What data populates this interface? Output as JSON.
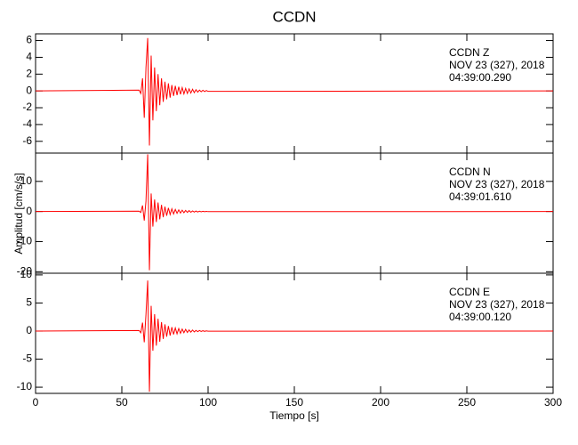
{
  "chart_data": [
    {
      "type": "line",
      "title": "CCDN",
      "annotations": [
        "CCDN   Z",
        "NOV 23 (327), 2018",
        "04:39:00.290"
      ],
      "color": "#ff0000",
      "x": [
        0,
        60,
        61,
        62,
        63,
        64,
        65,
        66,
        67,
        68,
        69,
        70,
        71,
        72,
        73,
        74,
        75,
        76,
        77,
        78,
        79,
        80,
        81,
        82,
        83,
        84,
        85,
        86,
        87,
        88,
        89,
        90,
        91,
        92,
        93,
        94,
        95,
        96,
        97,
        98,
        99,
        100,
        300
      ],
      "values": [
        0,
        0.1,
        -0.3,
        1.5,
        -3.2,
        2.8,
        6.3,
        -6.5,
        4.2,
        -3.5,
        2.8,
        -2.4,
        2.0,
        -1.7,
        1.5,
        -1.3,
        1.1,
        -1.0,
        0.9,
        -0.8,
        0.7,
        -0.6,
        0.6,
        -0.5,
        0.5,
        -0.4,
        0.4,
        -0.35,
        0.3,
        -0.3,
        0.25,
        -0.25,
        0.2,
        -0.2,
        0.15,
        -0.15,
        0.1,
        -0.1,
        0.08,
        -0.08,
        0.05,
        -0.05,
        0
      ],
      "xlim": [
        0,
        300
      ],
      "xticks": [
        0,
        50,
        100,
        150,
        200,
        250,
        300
      ],
      "ylim": [
        -7.4,
        6.8
      ],
      "yticks": [
        -6,
        -4,
        -2,
        0,
        2,
        4,
        6
      ]
    },
    {
      "type": "line",
      "ylabel": "Amplitud [cm/s/s]",
      "annotations": [
        "CCDN   N",
        "NOV 23 (327), 2018",
        "04:39:01.610"
      ],
      "color": "#ff0000",
      "x": [
        0,
        60,
        61,
        62,
        63,
        64,
        65,
        66,
        67,
        68,
        69,
        70,
        71,
        72,
        73,
        74,
        75,
        76,
        77,
        78,
        79,
        80,
        81,
        82,
        83,
        84,
        85,
        86,
        87,
        88,
        89,
        90,
        91,
        92,
        93,
        94,
        95,
        96,
        97,
        98,
        99,
        100,
        300
      ],
      "values": [
        0,
        0.1,
        -0.3,
        2,
        -3,
        3.5,
        19,
        -19.5,
        6,
        -5,
        4,
        -3.5,
        3,
        -2.6,
        2.2,
        -1.9,
        1.6,
        -1.4,
        1.2,
        -1.0,
        0.9,
        -0.8,
        0.7,
        -0.6,
        0.55,
        -0.5,
        0.45,
        -0.4,
        0.35,
        -0.3,
        0.3,
        -0.25,
        0.2,
        -0.2,
        0.15,
        -0.15,
        0.1,
        -0.1,
        0.08,
        -0.08,
        0.05,
        -0.05,
        0
      ],
      "xlim": [
        0,
        300
      ],
      "xticks": [
        0,
        50,
        100,
        150,
        200,
        250,
        300
      ],
      "ylim": [
        -20.5,
        19.4
      ],
      "yticks": [
        -20,
        -10,
        0,
        10
      ]
    },
    {
      "type": "line",
      "xlabel": "Tiempo [s]",
      "annotations": [
        "CCDN   E",
        "NOV 23 (327), 2018",
        "04:39:00.120"
      ],
      "color": "#ff0000",
      "x": [
        0,
        60,
        61,
        62,
        63,
        64,
        65,
        66,
        67,
        68,
        69,
        70,
        71,
        72,
        73,
        74,
        75,
        76,
        77,
        78,
        79,
        80,
        81,
        82,
        83,
        84,
        85,
        86,
        87,
        88,
        89,
        90,
        91,
        92,
        93,
        94,
        95,
        96,
        97,
        98,
        99,
        100,
        300
      ],
      "values": [
        0,
        0.1,
        -0.3,
        1.5,
        -2,
        3,
        9,
        -10.8,
        4.5,
        -3.5,
        3,
        -2.6,
        2.2,
        -1.9,
        1.6,
        -1.4,
        1.2,
        -1.0,
        0.9,
        -0.8,
        0.7,
        -0.6,
        0.55,
        -0.5,
        0.45,
        -0.4,
        0.35,
        -0.3,
        0.3,
        -0.25,
        0.2,
        -0.2,
        0.18,
        -0.15,
        0.12,
        -0.1,
        0.1,
        -0.08,
        0.06,
        -0.05,
        0.04,
        -0.03,
        0
      ],
      "xlim": [
        0,
        300
      ],
      "xticks": [
        0,
        50,
        100,
        150,
        200,
        250,
        300
      ],
      "ylim": [
        -11.1,
        10.3
      ],
      "yticks": [
        -10,
        -5,
        0,
        5,
        10
      ]
    }
  ]
}
